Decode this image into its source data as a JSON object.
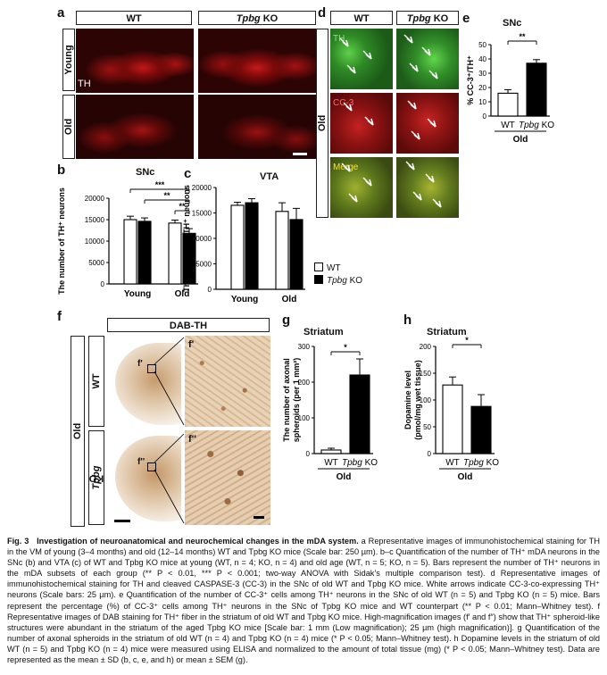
{
  "panels": {
    "a": {
      "label": "a",
      "col_wt": "WT",
      "col_ko_gene": "Tpbg",
      "col_ko_suffix": "KO",
      "row_young": "Young",
      "row_old": "Old",
      "stain": "TH"
    },
    "b": {
      "label": "b",
      "title": "SNc",
      "ylabel": "The number of TH⁺ neurons",
      "sig1": "***",
      "sig2": "**",
      "sig3": "**"
    },
    "c": {
      "label": "c",
      "title": "VTA",
      "ylabel": "The number of TH⁺ neurons"
    },
    "bc_legend": {
      "wt": "WT",
      "ko_gene": "Tpbg",
      "ko_suffix": "KO"
    },
    "d": {
      "label": "d",
      "col_wt": "WT",
      "col_ko_gene": "Tpbg",
      "col_ko_suffix": "KO",
      "row": "Old",
      "th": "TH",
      "cc3": "CC-3",
      "merge": "Merge"
    },
    "e": {
      "label": "e",
      "title": "SNc",
      "ylabel": "% CC-3⁺/TH⁺",
      "sig": "**",
      "group": "Old"
    },
    "f": {
      "label": "f",
      "header": "DAB-TH",
      "row": "Old",
      "wt": "WT",
      "ko_gene": "Tpbg",
      "ko_suffix": "KO",
      "f1": "f'",
      "f2": "f''"
    },
    "g": {
      "label": "g",
      "title": "Striatum",
      "ylabel1": "The number of axonal",
      "ylabel2": "spheroids (per 1 mm²)",
      "sig": "*",
      "group": "Old"
    },
    "h": {
      "label": "h",
      "title": "Striatum",
      "ylabel1": "Dopamine level",
      "ylabel2": "(pmol/mg wet tissue)",
      "sig": "*",
      "group": "Old"
    }
  },
  "chart_data": [
    {
      "panel": "b",
      "type": "bar",
      "title": "SNc",
      "ylabel": "The number of TH⁺ neurons",
      "groups": [
        "Young",
        "Old"
      ],
      "series": [
        {
          "name": "WT",
          "values": [
            15000,
            14200
          ],
          "errors": [
            800,
            700
          ]
        },
        {
          "name": "Tpbg KO",
          "values": [
            14600,
            11800
          ],
          "errors": [
            800,
            1100
          ]
        }
      ],
      "ylim": [
        0,
        20000
      ],
      "yticks": [
        0,
        5000,
        10000,
        15000,
        20000
      ]
    },
    {
      "panel": "c",
      "type": "bar",
      "title": "VTA",
      "ylabel": "The number of TH⁺ neurons",
      "groups": [
        "Young",
        "Old"
      ],
      "series": [
        {
          "name": "WT",
          "values": [
            16500,
            15300
          ],
          "errors": [
            600,
            1700
          ]
        },
        {
          "name": "Tpbg KO",
          "values": [
            17000,
            13700
          ],
          "errors": [
            800,
            2200
          ]
        }
      ],
      "ylim": [
        0,
        20000
      ],
      "yticks": [
        0,
        5000,
        10000,
        15000,
        20000
      ]
    },
    {
      "panel": "e",
      "type": "bar",
      "title": "SNc",
      "ylabel": "% CC-3⁺/TH⁺",
      "categories": [
        "WT",
        "Tpbg KO"
      ],
      "group": "Old",
      "values": [
        16,
        37
      ],
      "errors": [
        2.5,
        2.5
      ],
      "ylim": [
        0,
        50
      ],
      "yticks": [
        0,
        10,
        20,
        30,
        40,
        50
      ]
    },
    {
      "panel": "g",
      "type": "bar",
      "title": "Striatum",
      "ylabel": "The number of axonal spheroids (per 1 mm²)",
      "categories": [
        "WT",
        "Tpbg KO"
      ],
      "group": "Old",
      "values": [
        10,
        220
      ],
      "errors": [
        5,
        45
      ],
      "ylim": [
        0,
        300
      ],
      "yticks": [
        0,
        100,
        200,
        300
      ]
    },
    {
      "panel": "h",
      "type": "bar",
      "title": "Striatum",
      "ylabel": "Dopamine level (pmol/mg wet tissue)",
      "categories": [
        "WT",
        "Tpbg KO"
      ],
      "group": "Old",
      "values": [
        128,
        88
      ],
      "errors": [
        15,
        22
      ],
      "ylim": [
        0,
        200
      ],
      "yticks": [
        0,
        50,
        100,
        150,
        200
      ]
    }
  ],
  "caption": {
    "fig": "Fig. 3",
    "title": "Investigation of neuroanatomical and neurochemical changes in the mDA system.",
    "body": " a Representative images of immunohistochemical staining for TH in the VM of young (3–4 months) and old (12–14 months) WT and Tpbg KO mice (Scale bar: 250 µm). b–c Quantification of the number of TH⁺ mDA neurons in the SNc (b) and VTA (c) of WT and Tpbg KO mice at young (WT, n = 4; KO, n = 4) and old age (WT, n = 5; KO, n = 5). Bars represent the number of TH⁺ neurons in the mDA subsets of each group (** P < 0.01, *** P < 0.001; two-way ANOVA with Sidak’s multiple comparison test). d Representative images of immunohistochemical staining for TH and cleaved CASPASE-3 (CC-3) in the SNc of old WT and Tpbg KO mice. White arrows indicate CC-3-co-expressing TH⁺ neurons (Scale bars: 25 µm). e Quantification of the number of CC-3⁺ cells among TH⁺ neurons in the SNc of old WT (n = 5) and Tpbg KO (n = 5) mice. Bars represent the percentage (%) of CC-3⁺ cells among TH⁺ neurons in the SNc of Tpbg KO mice and WT counterpart (** P < 0.01; Mann–Whitney test). f Representative images of DAB staining for TH⁺ fiber in the striatum of old WT and Tpbg KO mice. High-magnification images (f′ and f″) show that TH⁺ spheroid-like structures were abundant in the striatum of the aged Tpbg KO mice [Scale bar: 1 mm (Low magnification); 25 µm (high magnification)]. g Quantification of the number of axonal spheroids in the striatum of old WT (n = 4) and Tpbg KO (n = 4) mice (* P < 0.05; Mann–Whitney test). h Dopamine levels in the striatum of old WT (n = 5) and Tpbg KO (n = 4) mice were measured using ELISA and normalized to the amount of total tissue (mg) (* P < 0.05; Mann–Whitney test). Data are represented as the mean ± SD (b, c, e, and h) or mean ± SEM (g)."
  }
}
